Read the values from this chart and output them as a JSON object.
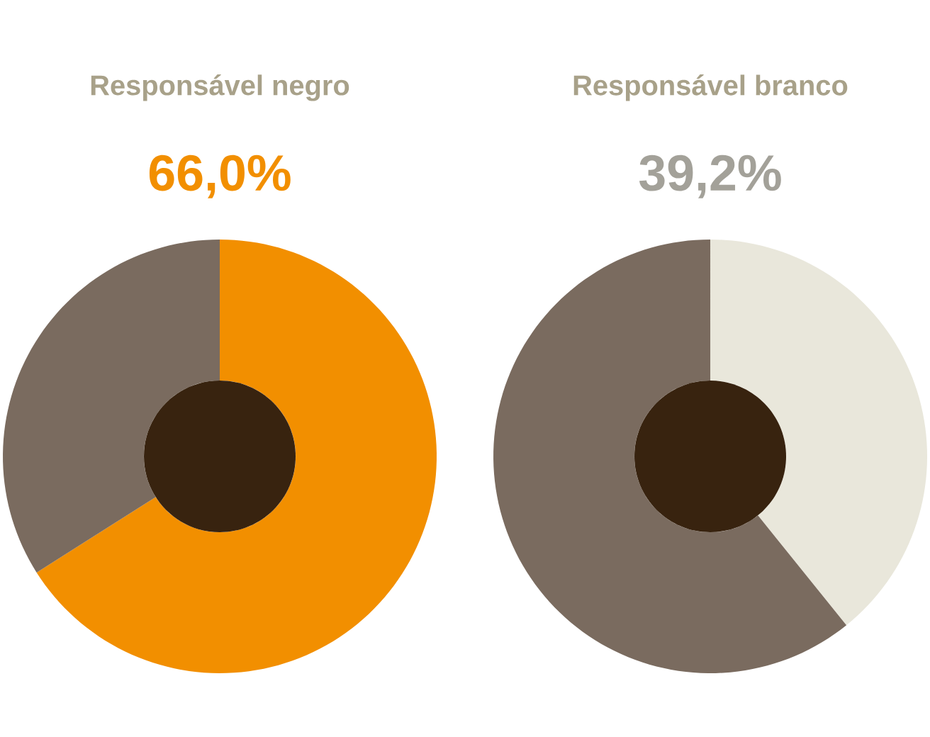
{
  "chart_data": [
    {
      "type": "donut",
      "title": "Responsável negro",
      "categories": [
        null,
        null
      ],
      "values": [
        66.0,
        34.0
      ],
      "colors": [
        "#f28f00",
        "#7a6b5f"
      ],
      "value_labels": [
        "66,0%",
        null
      ]
    },
    {
      "type": "donut",
      "title": "Responsável branco",
      "categories": [
        null,
        null
      ],
      "values": [
        39.2,
        60.8
      ],
      "colors": [
        "#e9e7db",
        "#7a6b5f"
      ],
      "value_labels": [
        "39,2%",
        null
      ]
    }
  ]
}
